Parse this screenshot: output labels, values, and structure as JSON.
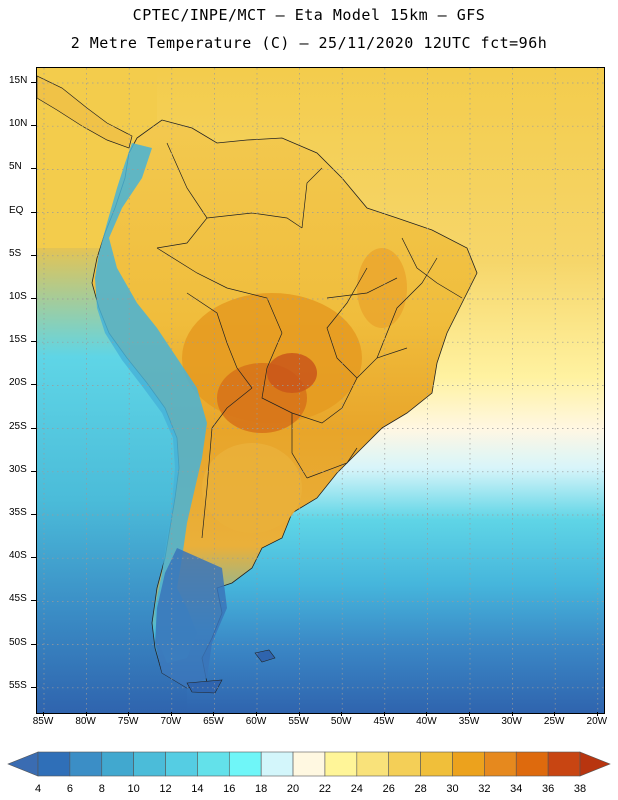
{
  "header": {
    "line1": "CPTEC/INPE/MCT –  Eta Model 15km – GFS",
    "line2": "2 Metre Temperature (C) – 25/11/2020 12UTC fct=96h"
  },
  "axes": {
    "lat_labels": [
      "15N",
      "10N",
      "5N",
      "EQ",
      "5S",
      "10S",
      "15S",
      "20S",
      "25S",
      "30S",
      "35S",
      "40S",
      "45S",
      "50S",
      "55S"
    ],
    "lon_labels": [
      "85W",
      "80W",
      "75W",
      "70W",
      "65W",
      "60W",
      "55W",
      "50W",
      "45W",
      "40W",
      "35W",
      "30W",
      "25W",
      "20W"
    ]
  },
  "colorbar": {
    "levels": [
      "4",
      "6",
      "8",
      "10",
      "12",
      "14",
      "16",
      "18",
      "20",
      "22",
      "24",
      "26",
      "28",
      "30",
      "32",
      "34",
      "36",
      "38"
    ],
    "colors": [
      "#3a6cb2",
      "#2f6fb8",
      "#3b8ec6",
      "#41a8cf",
      "#4bbcd9",
      "#55cde3",
      "#63e1ea",
      "#6ff6f8",
      "#d3f6fb",
      "#fff8e1",
      "#fff598",
      "#f9e27a",
      "#f4cf57",
      "#f0bf3a",
      "#eca21d",
      "#e6891e",
      "#de6a0d",
      "#c84512",
      "#b8350f"
    ]
  },
  "map_colors": {
    "ocean_north": "#f3cc4c",
    "ocean_mid": "#fff2a1",
    "ocean_cream": "#fff7e3",
    "ocean_cyan": "#5fd5e6",
    "ocean_blue": "#3f9bd1",
    "ocean_deep": "#2f64ae",
    "land_warm": "#f0c247",
    "land_hot": "#e59b21",
    "land_hotter": "#d7741a",
    "andes_cool": "#47b3d8"
  }
}
